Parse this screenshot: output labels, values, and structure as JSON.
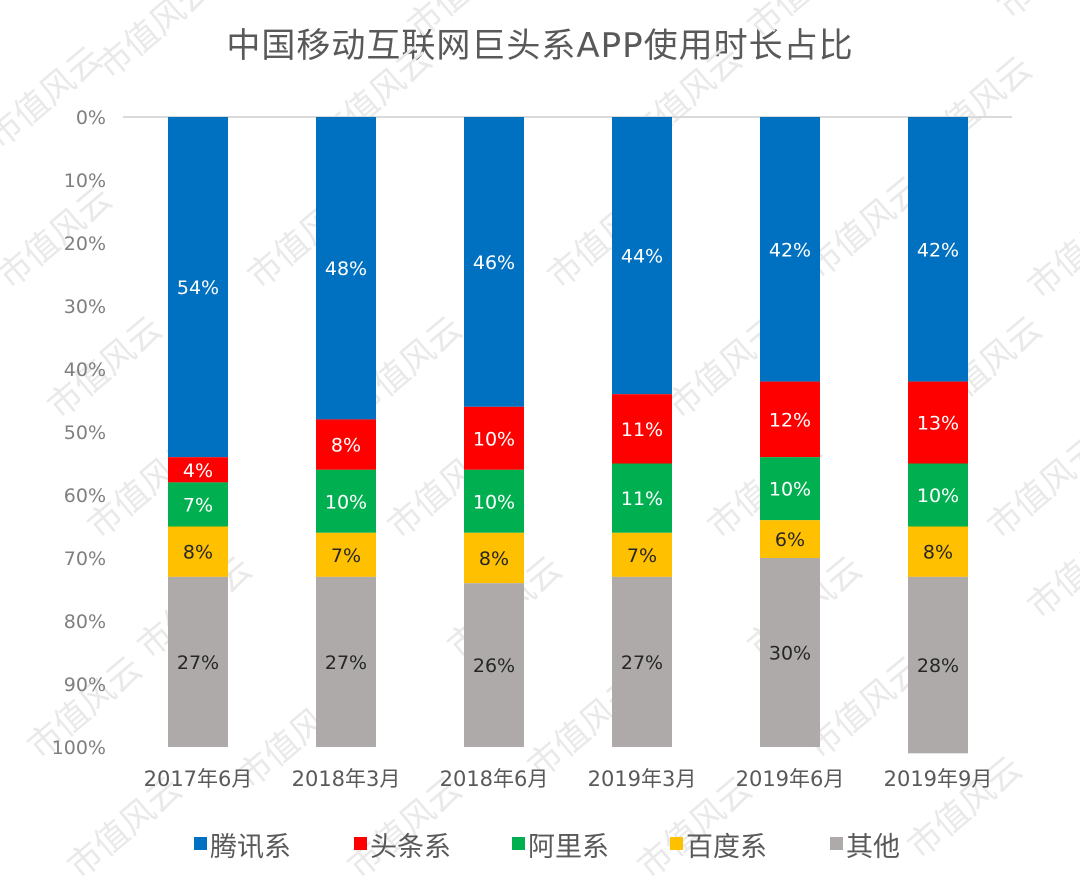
{
  "chart_data": {
    "type": "bar",
    "stacked": true,
    "orientation": "vertical",
    "y_axis_inverted": true,
    "title": "中国移动互联网巨头系APP使用时长占比",
    "xlabel": "",
    "ylabel": "",
    "ylim": [
      0,
      100
    ],
    "y_ticks": [
      "0%",
      "10%",
      "20%",
      "30%",
      "40%",
      "50%",
      "60%",
      "70%",
      "80%",
      "90%",
      "100%"
    ],
    "grid": false,
    "legend_position": "bottom",
    "categories": [
      "2017年6月",
      "2018年3月",
      "2018年6月",
      "2019年3月",
      "2019年6月",
      "2019年9月"
    ],
    "series": [
      {
        "name": "腾讯系",
        "color": "#0070c0",
        "label_color": "#ffffff",
        "values": [
          54,
          48,
          46,
          44,
          42,
          42
        ]
      },
      {
        "name": "头条系",
        "color": "#ff0000",
        "label_color": "#ffffff",
        "values": [
          4,
          8,
          10,
          11,
          12,
          13
        ]
      },
      {
        "name": "阿里系",
        "color": "#00b050",
        "label_color": "#ffffff",
        "values": [
          7,
          10,
          10,
          11,
          10,
          10
        ]
      },
      {
        "name": "百度系",
        "color": "#ffc000",
        "label_color": "#262626",
        "values": [
          8,
          7,
          8,
          7,
          6,
          8
        ]
      },
      {
        "name": "其他",
        "color": "#aeaaaa",
        "label_color": "#262626",
        "values": [
          27,
          27,
          26,
          27,
          30,
          28
        ]
      }
    ],
    "data_labels": true,
    "label_suffix": "%"
  },
  "watermark": "市值风云"
}
